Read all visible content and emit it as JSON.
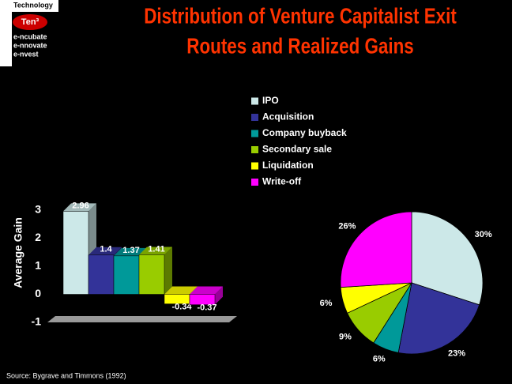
{
  "logo": {
    "lines": [
      "Technology",
      "Ten³",
      "e-ncubate",
      "e-nnovate",
      "e-nvest"
    ]
  },
  "title": [
    "Distribution of Venture Capitalist Exit",
    "Routes and Realized Gains"
  ],
  "source": "Source: Bygrave and Timmons (1992)",
  "chart_data": [
    {
      "type": "bar",
      "ylabel": "Average Gain",
      "ylim": [
        -1,
        3
      ],
      "yticks": [
        -1,
        0,
        1,
        2,
        3
      ],
      "series": [
        {
          "name": "IPO",
          "color": "#cce8e8",
          "values": [
            2.96
          ]
        },
        {
          "name": "Acquisition",
          "color": "#333399",
          "values": [
            1.4
          ]
        },
        {
          "name": "Company buyback",
          "color": "#009999",
          "values": [
            1.37
          ]
        },
        {
          "name": "Secondary sale",
          "color": "#99cc00",
          "values": [
            1.41
          ]
        },
        {
          "name": "Liquidation",
          "color": "#ffff00",
          "values": [
            -0.34
          ]
        },
        {
          "name": "Write-off",
          "color": "#ff00ff",
          "values": [
            -0.37
          ]
        }
      ]
    },
    {
      "type": "pie",
      "values": [
        30,
        23,
        6,
        9,
        6,
        26
      ],
      "value_labels": [
        "30%",
        "23%",
        "6%",
        "9%",
        "6%",
        "26%"
      ],
      "colors": [
        "#cce8e8",
        "#333399",
        "#009999",
        "#99cc00",
        "#ffff00",
        "#ff00ff"
      ]
    }
  ]
}
